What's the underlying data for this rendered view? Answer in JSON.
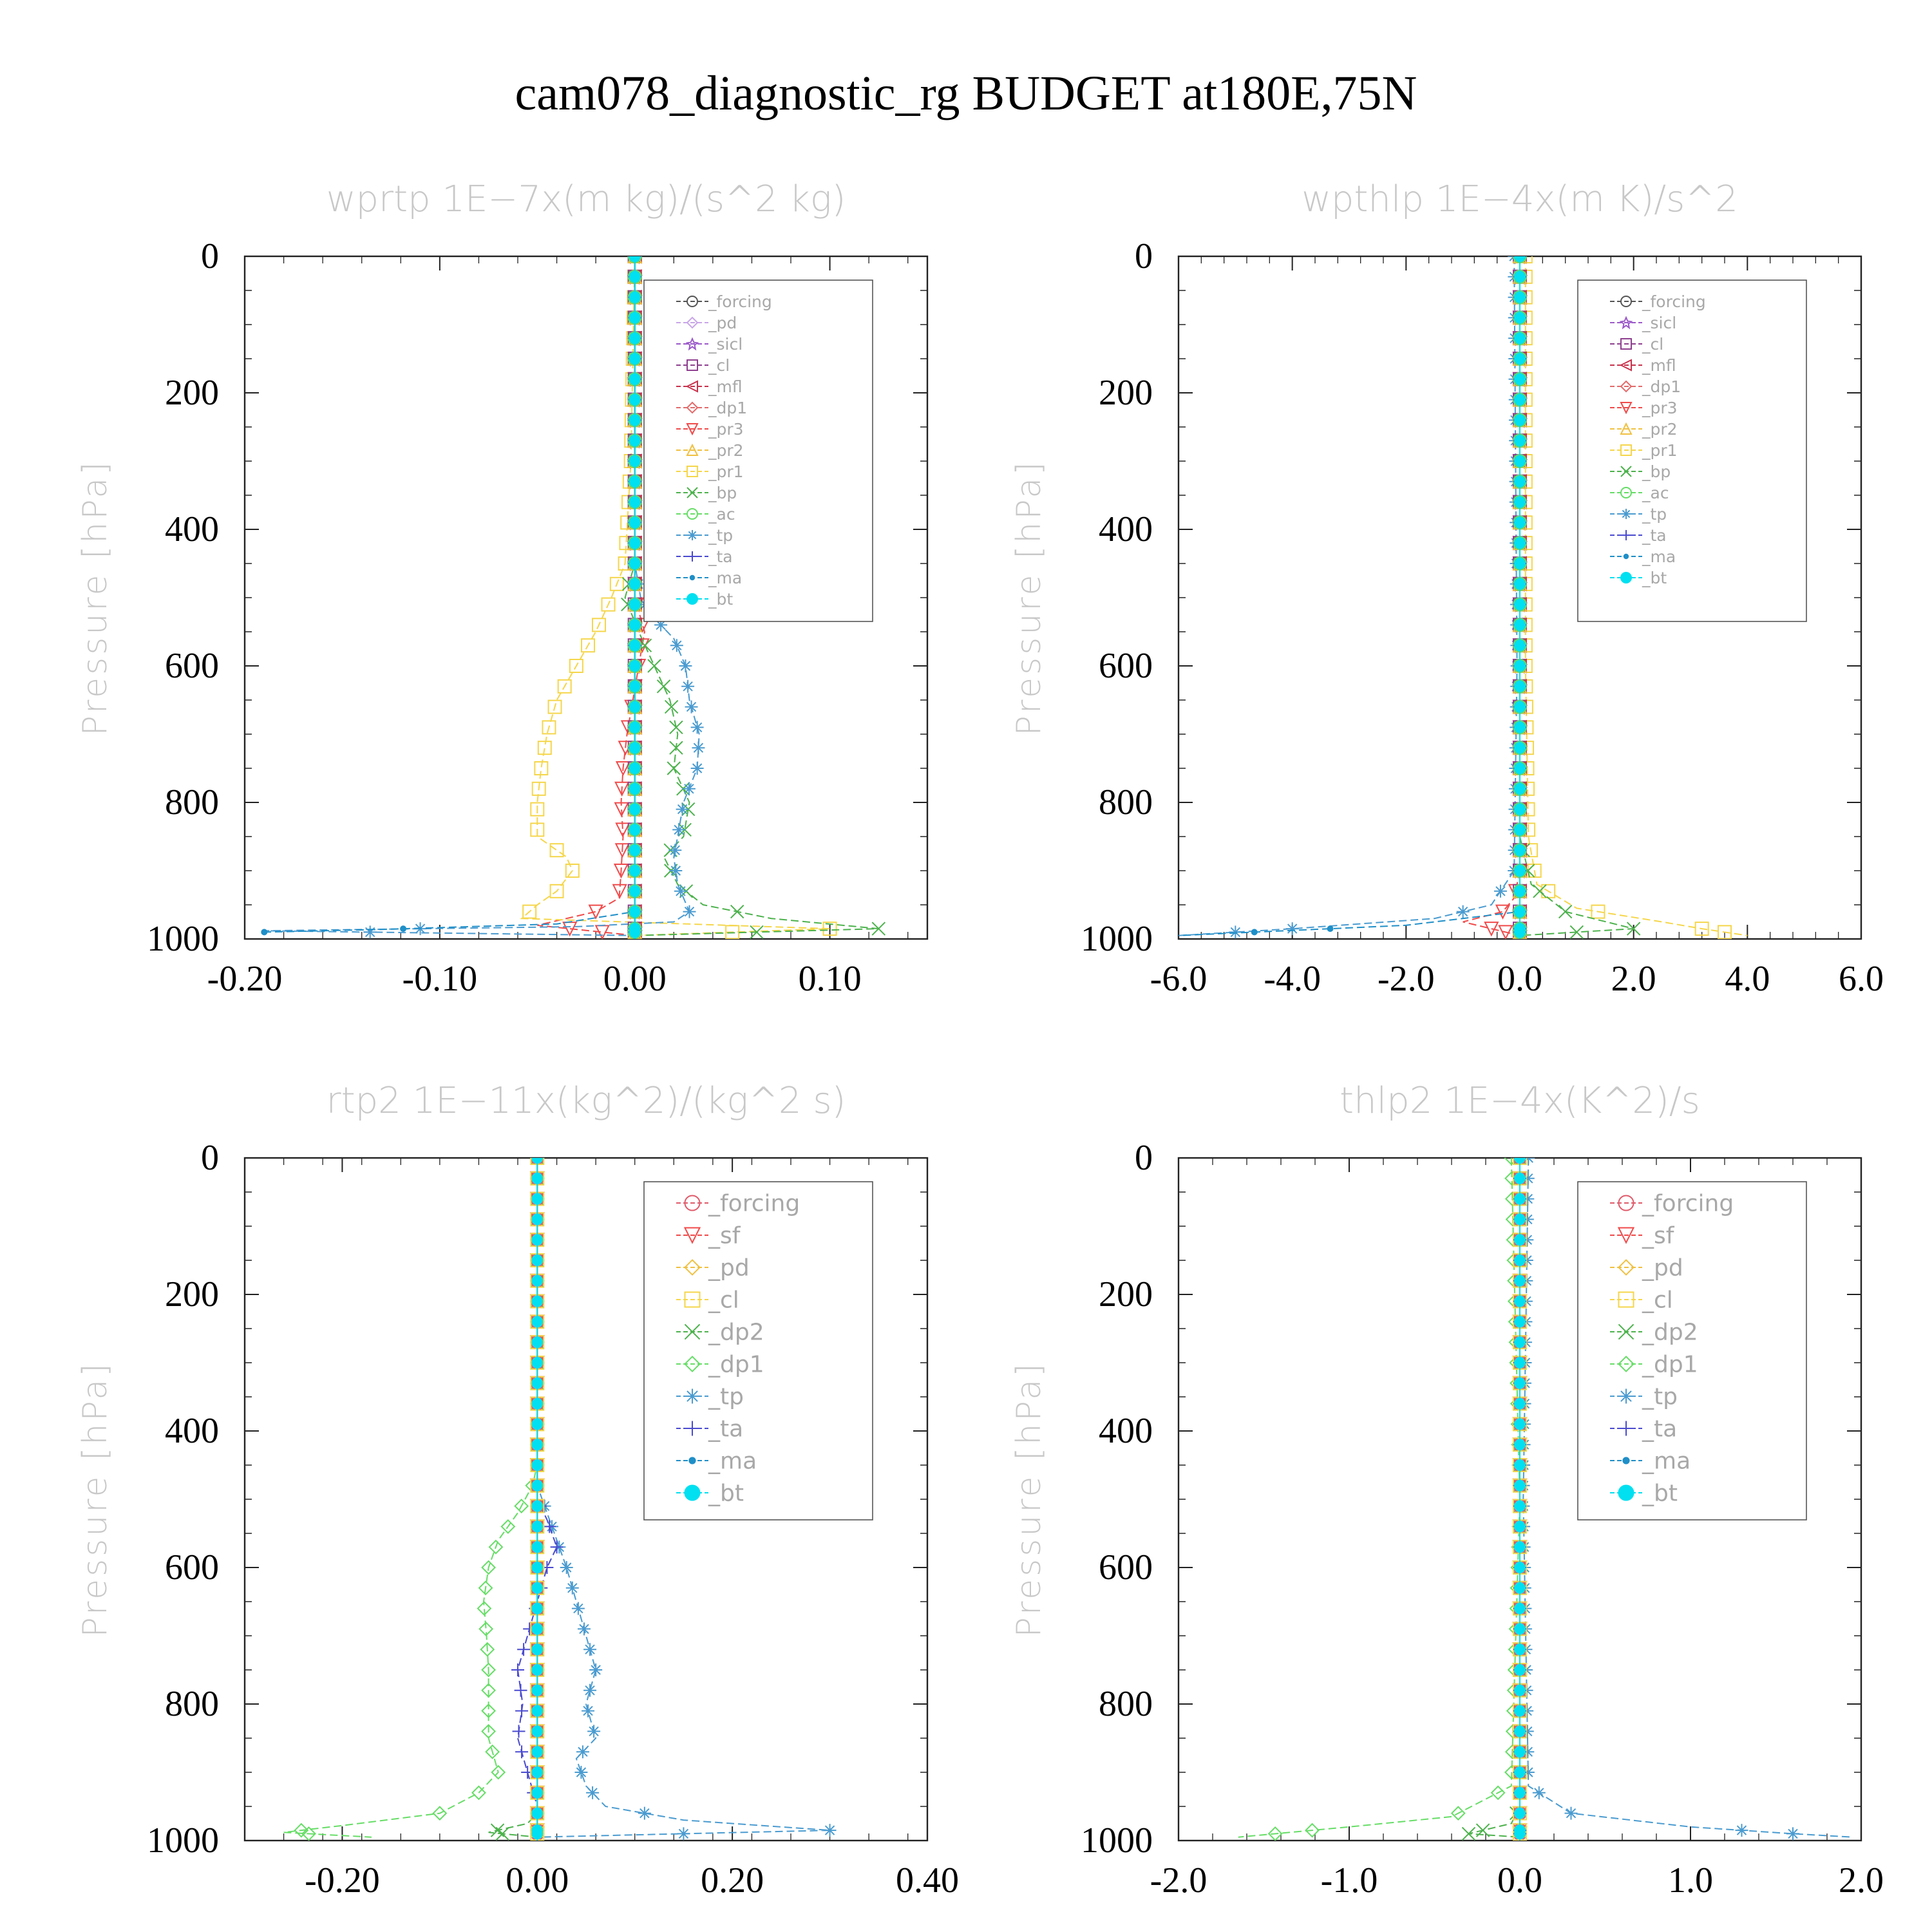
{
  "title": "cam078_diagnostic_rg  BUDGET at180E,75N",
  "colors": {
    "forcing": "#555555",
    "pd": "#c9a6e8",
    "sicl": "#9b59c9",
    "cl": "#8e3f8e",
    "mfl": "#c8324c",
    "dp1": "#e26b6b",
    "pr3": "#f04a4a",
    "pr2": "#f0c040",
    "pr1": "#f5d64a",
    "bp": "#4cb24c",
    "ac": "#66dd66",
    "tp": "#4a9bd0",
    "ta": "#4a4ad0",
    "ma": "#1f8fc8",
    "bt": "#00e0f0"
  },
  "chart_data": [
    {
      "type": "line",
      "title": "wprtp   1E−7x(m kg)/(s^2 kg)",
      "ylabel": "Pressure [hPa]",
      "xlim": [
        -0.2,
        0.15
      ],
      "ylim": [
        1000,
        0
      ],
      "xticks": [
        "-0.20",
        "-0.10",
        "0.00",
        "0.10"
      ],
      "xtick_values": [
        -0.2,
        -0.1,
        0.0,
        0.1
      ],
      "yticks": [
        "0",
        "200",
        "400",
        "600",
        "800",
        "1000"
      ],
      "legend_labels": [
        "_forcing",
        "_pd",
        "_sicl",
        "_cl",
        "_mfl",
        "_dp1",
        "_pr3",
        "_pr2",
        "_pr1",
        "_bp",
        "_ac",
        "_tp",
        "_ta",
        "_ma",
        "_bt"
      ],
      "series": [
        {
          "name": "_forcing",
          "zero": true
        },
        {
          "name": "_pd",
          "zero": true
        },
        {
          "name": "_sicl",
          "zero": true
        },
        {
          "name": "_cl",
          "zero": true
        },
        {
          "name": "_mfl",
          "zero": true
        },
        {
          "name": "_dp1",
          "zero": true
        },
        {
          "name": "_pr3",
          "points": [
            [
              0,
              0
            ],
            [
              0,
              500
            ],
            [
              0.005,
              550
            ],
            [
              0.002,
              600
            ],
            [
              -0.001,
              650
            ],
            [
              -0.004,
              700
            ],
            [
              -0.006,
              750
            ],
            [
              -0.007,
              800
            ],
            [
              -0.006,
              850
            ],
            [
              -0.007,
              900
            ],
            [
              -0.008,
              940
            ],
            [
              -0.02,
              960
            ],
            [
              -0.05,
              980
            ],
            [
              0,
              995
            ]
          ]
        },
        {
          "name": "_pr2",
          "zero": true
        },
        {
          "name": "_pr1",
          "points": [
            [
              0,
              0
            ],
            [
              -0.002,
              300
            ],
            [
              -0.003,
              350
            ],
            [
              -0.005,
              450
            ],
            [
              -0.012,
              500
            ],
            [
              -0.02,
              550
            ],
            [
              -0.03,
              600
            ],
            [
              -0.04,
              650
            ],
            [
              -0.045,
              700
            ],
            [
              -0.048,
              750
            ],
            [
              -0.05,
              800
            ],
            [
              -0.05,
              850
            ],
            [
              -0.035,
              880
            ],
            [
              -0.032,
              900
            ],
            [
              -0.04,
              930
            ],
            [
              -0.05,
              950
            ],
            [
              -0.058,
              970
            ],
            [
              0.1,
              985
            ],
            [
              0,
              995
            ]
          ]
        },
        {
          "name": "_bp",
          "points": [
            [
              0,
              0
            ],
            [
              0,
              450
            ],
            [
              -0.005,
              500
            ],
            [
              0.002,
              550
            ],
            [
              0.01,
              600
            ],
            [
              0.018,
              650
            ],
            [
              0.022,
              700
            ],
            [
              0.02,
              750
            ],
            [
              0.028,
              800
            ],
            [
              0.025,
              850
            ],
            [
              0.015,
              880
            ],
            [
              0.022,
              920
            ],
            [
              0.035,
              950
            ],
            [
              0.07,
              970
            ],
            [
              0.125,
              985
            ],
            [
              0,
              995
            ]
          ]
        },
        {
          "name": "_ac",
          "zero": true
        },
        {
          "name": "_tp",
          "points": [
            [
              0,
              0
            ],
            [
              0,
              450
            ],
            [
              0.003,
              500
            ],
            [
              0.01,
              530
            ],
            [
              0.02,
              560
            ],
            [
              0.026,
              600
            ],
            [
              0.028,
              650
            ],
            [
              0.033,
              700
            ],
            [
              0.032,
              750
            ],
            [
              0.025,
              800
            ],
            [
              0.022,
              850
            ],
            [
              0.02,
              880
            ],
            [
              0.022,
              920
            ],
            [
              0.028,
              960
            ],
            [
              0.02,
              975
            ],
            [
              -0.03,
              982
            ],
            [
              -0.19,
              988
            ],
            [
              0,
              995
            ]
          ]
        },
        {
          "name": "_ta",
          "zero": true
        },
        {
          "name": "_ma",
          "points": [
            [
              0,
              0
            ],
            [
              0,
              960
            ],
            [
              -0.04,
              978
            ],
            [
              -0.13,
              986
            ],
            [
              -0.19,
              990
            ]
          ]
        },
        {
          "name": "_bt",
          "zero": true
        }
      ]
    },
    {
      "type": "line",
      "title": "wpthlp   1E−4x(m K)/s^2",
      "ylabel": "Pressure [hPa]",
      "xlim": [
        -6.0,
        6.0
      ],
      "ylim": [
        1000,
        0
      ],
      "xticks": [
        "-6.0",
        "-4.0",
        "-2.0",
        "0.0",
        "2.0",
        "4.0",
        "6.0"
      ],
      "xtick_values": [
        -6,
        -4,
        -2,
        0,
        2,
        4,
        6
      ],
      "yticks": [
        "0",
        "200",
        "400",
        "600",
        "800",
        "1000"
      ],
      "legend_labels": [
        "_forcing",
        "_sicl",
        "_cl",
        "_mfl",
        "_dp1",
        "_pr3",
        "_pr2",
        "_pr1",
        "_bp",
        "_ac",
        "_tp",
        "_ta",
        "_ma",
        "_bt"
      ],
      "series": [
        {
          "name": "_forcing",
          "zero": true
        },
        {
          "name": "_sicl",
          "zero": true
        },
        {
          "name": "_cl",
          "zero": true
        },
        {
          "name": "_mfl",
          "zero": true
        },
        {
          "name": "_dp1",
          "zero": true
        },
        {
          "name": "_pr3",
          "points": [
            [
              0,
              0
            ],
            [
              0,
              900
            ],
            [
              -0.1,
              940
            ],
            [
              -0.3,
              960
            ],
            [
              -1.0,
              975
            ],
            [
              -0.5,
              985
            ],
            [
              0,
              995
            ]
          ]
        },
        {
          "name": "_pr2",
          "zero": true
        },
        {
          "name": "_pr1",
          "points": [
            [
              0.1,
              0
            ],
            [
              0.1,
              600
            ],
            [
              0.15,
              850
            ],
            [
              0.3,
              920
            ],
            [
              1.0,
              955
            ],
            [
              2.5,
              975
            ],
            [
              3.2,
              985
            ],
            [
              4.0,
              995
            ]
          ]
        },
        {
          "name": "_bp",
          "points": [
            [
              0,
              0
            ],
            [
              0,
              850
            ],
            [
              0.2,
              920
            ],
            [
              0.8,
              960
            ],
            [
              2.0,
              985
            ],
            [
              0,
              995
            ]
          ]
        },
        {
          "name": "_ac",
          "zero": true
        },
        {
          "name": "_tp",
          "points": [
            [
              -0.1,
              0
            ],
            [
              -0.05,
              600
            ],
            [
              -0.1,
              900
            ],
            [
              -0.5,
              950
            ],
            [
              -1.5,
              970
            ],
            [
              -4.0,
              985
            ],
            [
              -6.0,
              995
            ]
          ]
        },
        {
          "name": "_ta",
          "zero": true
        },
        {
          "name": "_ma",
          "points": [
            [
              0,
              0
            ],
            [
              0,
              960
            ],
            [
              -2.0,
              980
            ],
            [
              -6.0,
              995
            ]
          ]
        },
        {
          "name": "_bt",
          "zero": true
        }
      ]
    },
    {
      "type": "line",
      "title": "rtp2   1E−11x(kg^2)/(kg^2 s)",
      "ylabel": "Pressure [hPa]",
      "xlim": [
        -0.3,
        0.4
      ],
      "ylim": [
        1000,
        0
      ],
      "xticks": [
        "-0.20",
        "0.00",
        "0.20",
        "0.40"
      ],
      "xtick_values": [
        -0.2,
        0.0,
        0.2,
        0.4
      ],
      "yticks": [
        "0",
        "200",
        "400",
        "600",
        "800",
        "1000"
      ],
      "legend_labels": [
        "_forcing",
        "_sf",
        "_pd",
        "_cl",
        "_dp2",
        "_dp1",
        "_tp",
        "_ta",
        "_ma",
        "_bt"
      ],
      "series": [
        {
          "name": "_forcing",
          "zero": true
        },
        {
          "name": "_sf",
          "zero": true
        },
        {
          "name": "_pd",
          "zero": true
        },
        {
          "name": "_cl",
          "zero": true
        },
        {
          "name": "_dp2",
          "points": [
            [
              0,
              0
            ],
            [
              0,
              960
            ],
            [
              -0.01,
              975
            ],
            [
              -0.05,
              988
            ],
            [
              0,
              995
            ]
          ]
        },
        {
          "name": "_dp1",
          "points": [
            [
              0,
              0
            ],
            [
              0,
              450
            ],
            [
              -0.005,
              480
            ],
            [
              -0.02,
              520
            ],
            [
              -0.04,
              560
            ],
            [
              -0.05,
              600
            ],
            [
              -0.055,
              650
            ],
            [
              -0.052,
              700
            ],
            [
              -0.05,
              750
            ],
            [
              -0.05,
              800
            ],
            [
              -0.05,
              850
            ],
            [
              -0.04,
              900
            ],
            [
              -0.06,
              930
            ],
            [
              -0.1,
              960
            ],
            [
              -0.2,
              978
            ],
            [
              -0.26,
              988
            ],
            [
              -0.17,
              995
            ]
          ]
        },
        {
          "name": "_tp",
          "points": [
            [
              0,
              0
            ],
            [
              0,
              480
            ],
            [
              0.01,
              520
            ],
            [
              0.02,
              560
            ],
            [
              0.03,
              600
            ],
            [
              0.04,
              650
            ],
            [
              0.05,
              700
            ],
            [
              0.06,
              750
            ],
            [
              0.05,
              800
            ],
            [
              0.06,
              850
            ],
            [
              0.04,
              880
            ],
            [
              0.05,
              920
            ],
            [
              0.07,
              950
            ],
            [
              0.15,
              970
            ],
            [
              0.3,
              985
            ],
            [
              0,
              995
            ]
          ]
        },
        {
          "name": "_ta",
          "points": [
            [
              0,
              0
            ],
            [
              0,
              500
            ],
            [
              0.01,
              530
            ],
            [
              0.02,
              570
            ],
            [
              0.01,
              600
            ],
            [
              0,
              650
            ],
            [
              -0.01,
              700
            ],
            [
              -0.02,
              750
            ],
            [
              -0.015,
              800
            ],
            [
              -0.02,
              850
            ],
            [
              -0.01,
              900
            ],
            [
              0,
              950
            ]
          ]
        },
        {
          "name": "_ma",
          "zero": true
        },
        {
          "name": "_bt",
          "zero": true
        }
      ]
    },
    {
      "type": "line",
      "title": "thlp2   1E−4x(K^2)/s",
      "ylabel": "Pressure [hPa]",
      "xlim": [
        -2.0,
        2.0
      ],
      "ylim": [
        1000,
        0
      ],
      "xticks": [
        "-2.0",
        "-1.0",
        "0.0",
        "1.0",
        "2.0"
      ],
      "xtick_values": [
        -2,
        -1,
        0,
        1,
        2
      ],
      "yticks": [
        "0",
        "200",
        "400",
        "600",
        "800",
        "1000"
      ],
      "legend_labels": [
        "_forcing",
        "_sf",
        "_pd",
        "_cl",
        "_dp2",
        "_dp1",
        "_tp",
        "_ta",
        "_ma",
        "_bt"
      ],
      "series": [
        {
          "name": "_forcing",
          "zero": true
        },
        {
          "name": "_sf",
          "zero": true
        },
        {
          "name": "_pd",
          "zero": true
        },
        {
          "name": "_cl",
          "zero": true
        },
        {
          "name": "_dp2",
          "points": [
            [
              0,
              0
            ],
            [
              0,
              950
            ],
            [
              -0.05,
              975
            ],
            [
              -0.3,
              990
            ],
            [
              0,
              995
            ]
          ]
        },
        {
          "name": "_dp1",
          "points": [
            [
              -0.05,
              0
            ],
            [
              0,
              500
            ],
            [
              -0.05,
              920
            ],
            [
              -0.4,
              965
            ],
            [
              -1.0,
              980
            ],
            [
              -1.65,
              995
            ]
          ]
        },
        {
          "name": "_tp",
          "points": [
            [
              0.05,
              0
            ],
            [
              0.02,
              500
            ],
            [
              0.05,
              920
            ],
            [
              0.3,
              960
            ],
            [
              1.0,
              980
            ],
            [
              1.6,
              990
            ],
            [
              1.95,
              995
            ]
          ]
        },
        {
          "name": "_ta",
          "zero": true
        },
        {
          "name": "_ma",
          "zero": true
        },
        {
          "name": "_bt",
          "zero": true
        }
      ]
    }
  ]
}
